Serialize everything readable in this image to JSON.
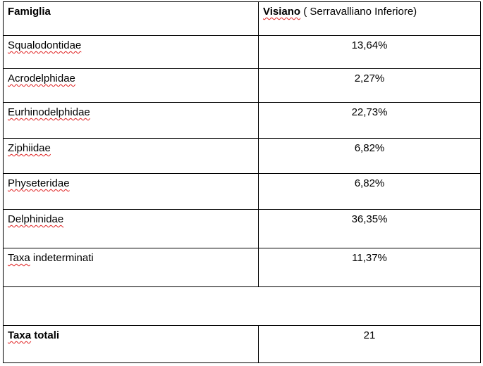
{
  "table": {
    "header": {
      "family_label": "Famiglia",
      "site_label": "Visiano",
      "site_detail": " ( Serravalliano Inferiore)"
    },
    "rows": [
      {
        "family": "Squalodontidae",
        "value": "13,64%"
      },
      {
        "family": "Acrodelphidae",
        "value": "2,27%"
      },
      {
        "family": "Eurhinodelphidae",
        "value": "22,73%"
      },
      {
        "family": "Ziphiidae",
        "value": "6,82%"
      },
      {
        "family": "Physeteridae",
        "value": "6,82%"
      },
      {
        "family": "Delphinidae",
        "value": "36,35%"
      },
      {
        "family_first": "Taxa",
        "family_rest": " indeterminati",
        "value": "11,37%"
      }
    ],
    "total": {
      "label_first": "Taxa",
      "label_rest": " totali",
      "value": "21"
    }
  },
  "colors": {
    "border": "#000000",
    "spellcheck_underline": "#e02020"
  }
}
